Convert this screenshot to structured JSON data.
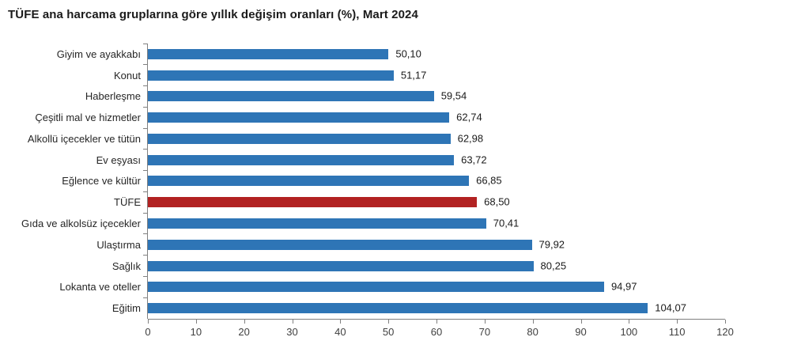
{
  "chart_data": {
    "type": "bar",
    "orientation": "horizontal",
    "title": "TÜFE ana harcama gruplarına göre yıllık değişim oranları (%), Mart 2024",
    "xlabel": "",
    "ylabel": "",
    "xlim": [
      0,
      120
    ],
    "xticks": [
      0,
      10,
      20,
      30,
      40,
      50,
      60,
      70,
      80,
      90,
      100,
      110,
      120
    ],
    "grid": false,
    "legend": false,
    "bar_color": "#2E75B6",
    "highlight_color": "#B22222",
    "axis_color": "#808080",
    "highlight_category": "TÜFE",
    "highlight_index": 7,
    "categories": [
      "Giyim ve ayakkabı",
      "Konut",
      "Haberleşme",
      "Çeşitli mal ve hizmetler",
      "Alkollü içecekler ve tütün",
      "Ev eşyası",
      "Eğlence ve kültür",
      "TÜFE",
      "Gıda ve alkolsüz içecekler",
      "Ulaştırma",
      "Sağlık",
      "Lokanta ve oteller",
      "Eğitim"
    ],
    "values": [
      50.1,
      51.17,
      59.54,
      62.74,
      62.98,
      63.72,
      66.85,
      68.5,
      70.41,
      79.92,
      80.25,
      94.97,
      104.07
    ],
    "value_labels": [
      "50,10",
      "51,17",
      "59,54",
      "62,74",
      "62,98",
      "63,72",
      "66,85",
      "68,50",
      "70,41",
      "79,92",
      "80,25",
      "94,97",
      "104,07"
    ]
  }
}
